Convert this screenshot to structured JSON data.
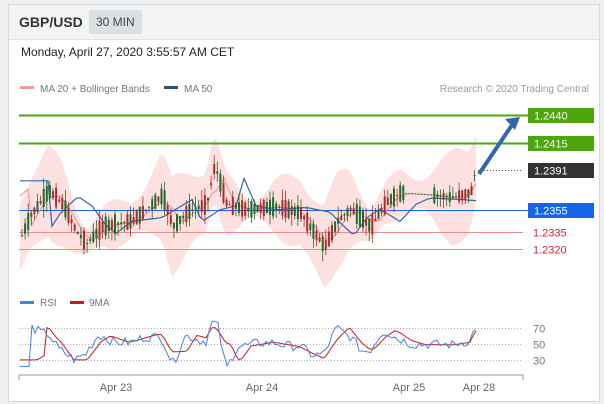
{
  "header": {
    "symbol": "GBP/USD",
    "timeframe": "30 MIN"
  },
  "timestamp": "Monday, April 27, 2020 3:55:57 AM CET",
  "legend": {
    "ma20_bb": "MA 20 + Bollinger Bands",
    "ma50": "MA 50",
    "credit": "Research © 2020 Trading Central"
  },
  "rsi_legend": {
    "rsi": "RSI",
    "ma9": "9MA"
  },
  "colors": {
    "green": "#4ea60f",
    "blue": "#1565e8",
    "red": "#d9262c",
    "dark": "#333333",
    "candle_up": "#1f6a2c",
    "candle_down": "#b12a2a",
    "bollinger": "#fde0e0",
    "ma20": "#f08f8f",
    "ma50": "#3366aa",
    "rsi": "#4a7fe0",
    "rsi_ma": "#d31818",
    "arrow": "#3366aa"
  },
  "chart_data": [
    {
      "type": "candlestick",
      "y_range": [
        1.2285,
        1.2455
      ],
      "levels": [
        {
          "value": 1.244,
          "label": "1.2440",
          "style": "green"
        },
        {
          "value": 1.2415,
          "label": "1.2415",
          "style": "green"
        },
        {
          "value": 1.2391,
          "label": "1.2391",
          "style": "dark"
        },
        {
          "value": 1.2355,
          "label": "1.2355",
          "style": "blue"
        },
        {
          "value": 1.2335,
          "label": "1.2335",
          "style": "red"
        },
        {
          "value": 1.232,
          "label": "1.2320",
          "style": "red"
        }
      ],
      "x_labels": [
        "Apr 23",
        "Apr 24",
        "Apr 25",
        "Apr 28"
      ],
      "series": [
        {
          "name": "MA 20 + Bollinger Bands"
        },
        {
          "name": "MA 50"
        }
      ]
    },
    {
      "type": "line",
      "y_range": [
        20,
        82
      ],
      "y_ticks": [
        70,
        50,
        30
      ],
      "series": [
        {
          "name": "RSI"
        },
        {
          "name": "9MA"
        }
      ]
    }
  ]
}
